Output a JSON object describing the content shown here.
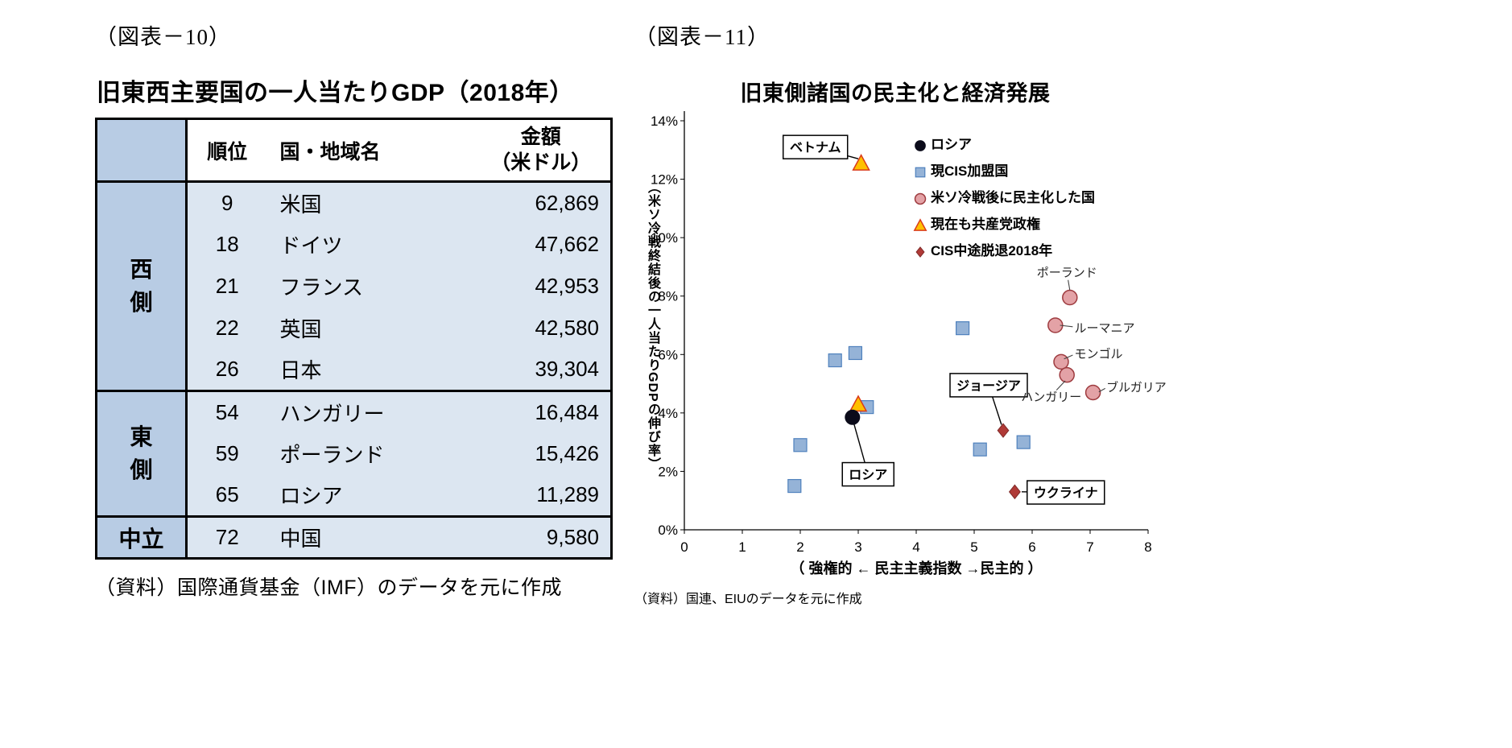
{
  "fig10": {
    "tag": "（図表－10）",
    "title": "旧東西主要国の一人当たりGDP（2018年）",
    "columns": {
      "rank": "順位",
      "country": "国・地域名",
      "amount_line1": "金額",
      "amount_line2": "（米ドル）"
    },
    "groups": [
      {
        "label": "西側",
        "rows": [
          {
            "rank": "9",
            "country": "米国",
            "amount": "62,869"
          },
          {
            "rank": "18",
            "country": "ドイツ",
            "amount": "47,662"
          },
          {
            "rank": "21",
            "country": "フランス",
            "amount": "42,953"
          },
          {
            "rank": "22",
            "country": "英国",
            "amount": "42,580"
          },
          {
            "rank": "26",
            "country": "日本",
            "amount": "39,304"
          }
        ]
      },
      {
        "label": "東側",
        "rows": [
          {
            "rank": "54",
            "country": "ハンガリー",
            "amount": "16,484"
          },
          {
            "rank": "59",
            "country": "ポーランド",
            "amount": "15,426"
          },
          {
            "rank": "65",
            "country": "ロシア",
            "amount": "11,289"
          }
        ]
      },
      {
        "label": "中立",
        "rows": [
          {
            "rank": "72",
            "country": "中国",
            "amount": "9,580"
          }
        ]
      }
    ],
    "source": "（資料）国際通貨基金（IMF）のデータを元に作成"
  },
  "fig11": {
    "tag": "（図表－11）",
    "source": "（資料）国連、EIUのデータを元に作成"
  },
  "chart_data": {
    "type": "scatter",
    "title": "旧東側諸国の民主化と経済発展",
    "xlabel": "（ 強権的 ← 民主主義指数 →民主的 ）",
    "ylabel": "（米ソ冷戦終結後の一人当たりGDPの伸び率）",
    "xlim": [
      0,
      8
    ],
    "ylim": [
      0,
      14
    ],
    "xticks": [
      0,
      1,
      2,
      3,
      4,
      5,
      6,
      7,
      8
    ],
    "yticks": [
      "0%",
      "2%",
      "4%",
      "6%",
      "8%",
      "10%",
      "12%",
      "14%"
    ],
    "grid": false,
    "legend_position": "upper-right-inside",
    "series": [
      {
        "key": "russia",
        "name": "ロシア",
        "marker": "circle-black",
        "color": "#0b0b1a",
        "edge": "#0b0b1a",
        "z": 5,
        "points": [
          {
            "x": 2.9,
            "y": 3.85,
            "label": "ロシア"
          }
        ]
      },
      {
        "key": "cis",
        "name": "現CIS加盟国",
        "marker": "square",
        "color": "#95b3d7",
        "edge": "#4f81bd",
        "z": 1,
        "points": [
          {
            "x": 1.9,
            "y": 1.5
          },
          {
            "x": 2.0,
            "y": 2.9
          },
          {
            "x": 2.6,
            "y": 5.8
          },
          {
            "x": 2.95,
            "y": 6.05
          },
          {
            "x": 3.15,
            "y": 4.2
          },
          {
            "x": 4.8,
            "y": 6.9
          },
          {
            "x": 5.1,
            "y": 2.75
          },
          {
            "x": 5.85,
            "y": 3.0
          }
        ]
      },
      {
        "key": "democratized",
        "name": "米ソ冷戦後に民主化した国",
        "marker": "circle-pink",
        "color": "#e3a2a6",
        "edge": "#9e3b3f",
        "z": 2,
        "points": [
          {
            "x": 6.65,
            "y": 7.95,
            "label": "ポーランド"
          },
          {
            "x": 6.4,
            "y": 7.0,
            "label": "ルーマニア"
          },
          {
            "x": 6.5,
            "y": 5.75,
            "label": "モンゴル"
          },
          {
            "x": 6.6,
            "y": 5.3,
            "label": "ハンガリー"
          },
          {
            "x": 7.05,
            "y": 4.7,
            "label": "ブルガリア"
          }
        ]
      },
      {
        "key": "communist",
        "name": "現在も共産党政権",
        "marker": "triangle",
        "color": "#ffc000",
        "edge": "#d93a1a",
        "z": 4,
        "points": [
          {
            "x": 3.05,
            "y": 12.55,
            "label": "ベトナム"
          },
          {
            "x": 3.0,
            "y": 4.3
          }
        ]
      },
      {
        "key": "cis-withdrawn",
        "name": "CIS中途脱退2018年",
        "marker": "diamond",
        "color": "#b03a37",
        "edge": "#7e2a28",
        "z": 3,
        "points": [
          {
            "x": 5.5,
            "y": 3.4,
            "label": "ジョージア"
          },
          {
            "x": 5.7,
            "y": 1.3,
            "label": "ウクライナ"
          }
        ]
      }
    ],
    "annotations": [
      {
        "type": "callout",
        "text": "ベトナム",
        "cx": 2.26,
        "cy": 13.1,
        "tx": 3.0,
        "ty": 12.7
      },
      {
        "type": "callout",
        "text": "ロシア",
        "cx": 3.17,
        "cy": 1.9,
        "tx": 2.93,
        "ty": 3.6
      },
      {
        "type": "callout",
        "text": "ジョージア",
        "cx": 5.25,
        "cy": 4.95,
        "tx": 5.47,
        "ty": 3.6
      },
      {
        "type": "callout",
        "text": "ウクライナ",
        "cx": 6.58,
        "cy": 1.28,
        "tx": 5.82,
        "ty": 1.3
      },
      {
        "type": "label",
        "text": "ポーランド",
        "cx": 6.6,
        "cy": 8.8,
        "anchor": "middle",
        "line": [
          6.65,
          8.2,
          6.62,
          8.55
        ]
      },
      {
        "type": "label",
        "text": "ルーマニア",
        "cx": 6.73,
        "cy": 6.9,
        "anchor": "start",
        "line": [
          6.48,
          7.0,
          6.7,
          6.95
        ]
      },
      {
        "type": "label",
        "text": "モンゴル",
        "cx": 6.73,
        "cy": 6.02,
        "anchor": "start",
        "line": [
          6.55,
          5.85,
          6.7,
          5.98
        ]
      },
      {
        "type": "label",
        "text": "ハンガリー",
        "cx": 6.33,
        "cy": 4.55,
        "anchor": "middle",
        "line": [
          6.57,
          5.1,
          6.42,
          4.78
        ]
      },
      {
        "type": "label",
        "text": "ブルガリア",
        "cx": 7.28,
        "cy": 4.88,
        "anchor": "start",
        "line": [
          7.15,
          4.72,
          7.26,
          4.84
        ]
      }
    ]
  }
}
